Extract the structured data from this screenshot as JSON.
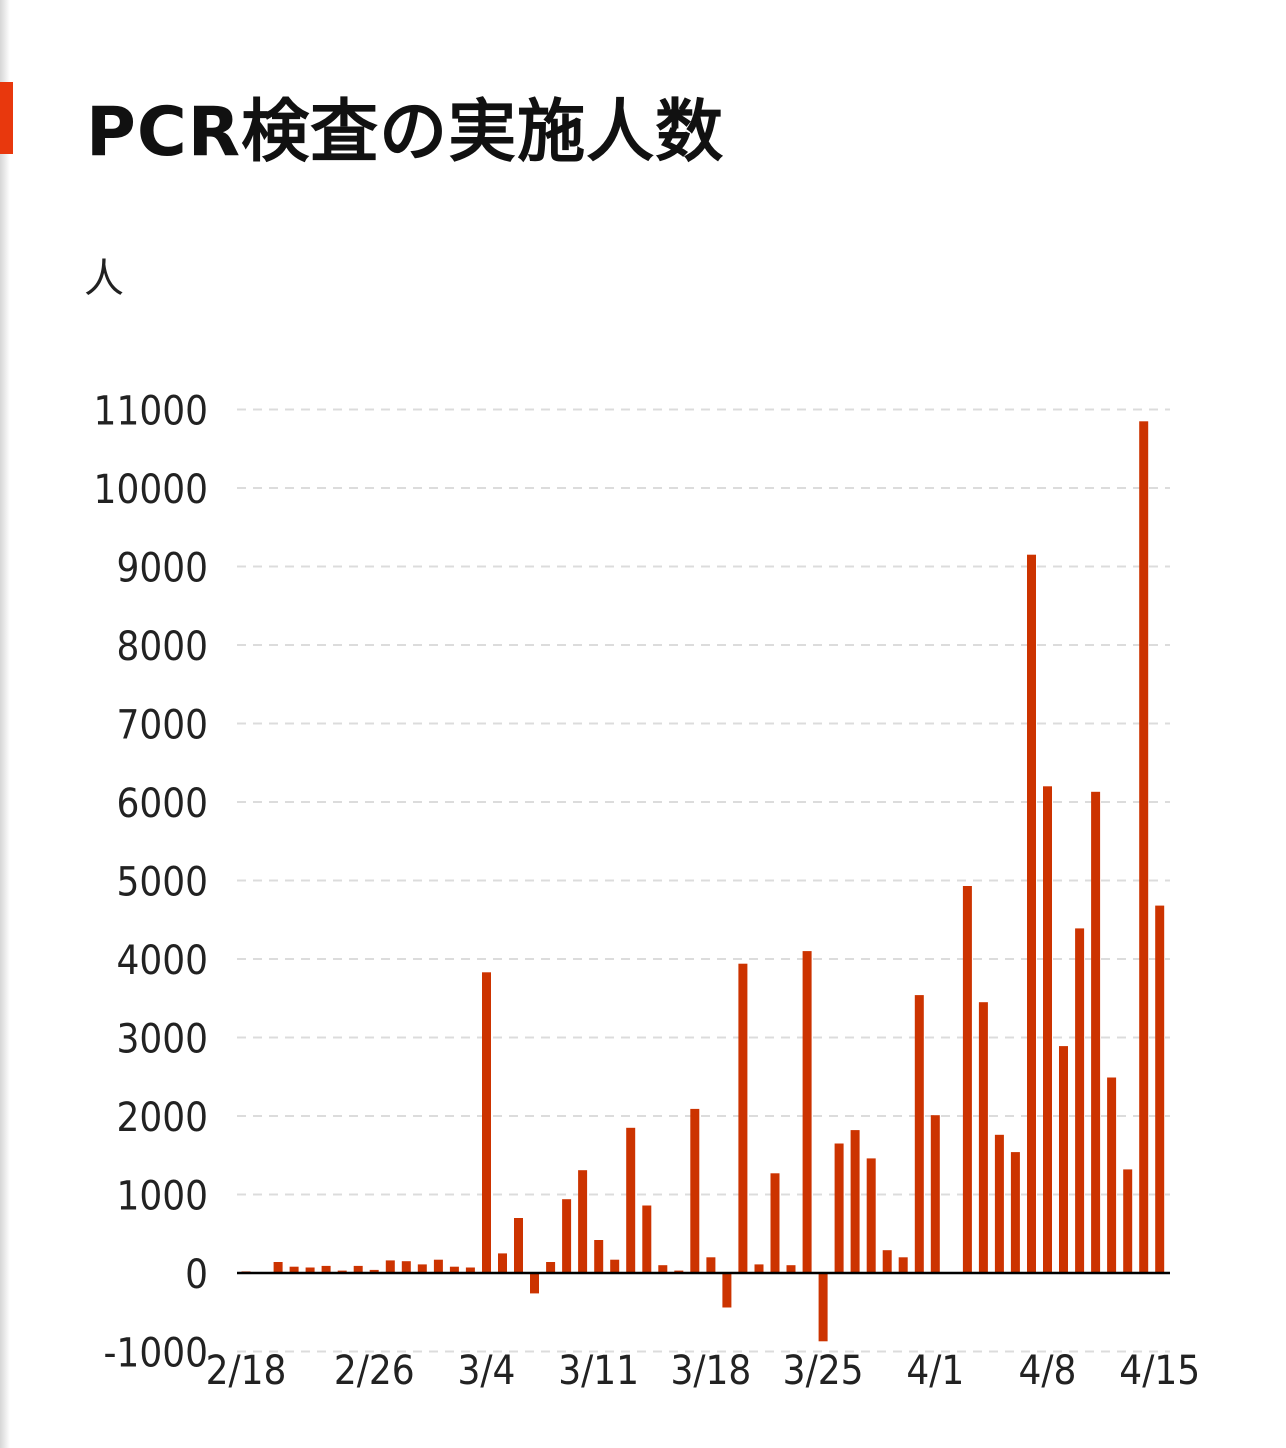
{
  "title": "PCR検査の実施人数",
  "unit_label": "人",
  "colors": {
    "bar": "#cc3300",
    "accent": "#e8380d",
    "grid": "#dcdcdc",
    "axis": "#000000"
  },
  "chart_data": {
    "type": "bar",
    "title": "PCR検査の実施人数",
    "ylabel": "人",
    "xlabel": "",
    "ylim": [
      -1000,
      11000
    ],
    "yticks": [
      11000,
      10000,
      9000,
      8000,
      7000,
      6000,
      5000,
      4000,
      3000,
      2000,
      1000,
      0,
      -1000
    ],
    "grid": "horizontal-dashed",
    "x_tick_labels": [
      "2/18",
      "2/26",
      "3/4",
      "3/11",
      "3/18",
      "3/25",
      "4/1",
      "4/8",
      "4/15"
    ],
    "categories": [
      "2/18",
      "2/19",
      "2/20",
      "2/21",
      "2/22",
      "2/23",
      "2/24",
      "2/25",
      "2/26",
      "2/27",
      "2/28",
      "2/29",
      "3/1",
      "3/2",
      "3/3",
      "3/4",
      "3/5",
      "3/6",
      "3/7",
      "3/8",
      "3/9",
      "3/10",
      "3/11",
      "3/12",
      "3/13",
      "3/14",
      "3/15",
      "3/16",
      "3/17",
      "3/18",
      "3/19",
      "3/20",
      "3/21",
      "3/22",
      "3/23",
      "3/24",
      "3/25",
      "3/26",
      "3/27",
      "3/28",
      "3/29",
      "3/30",
      "3/31",
      "4/1",
      "4/2",
      "4/3",
      "4/4",
      "4/5",
      "4/6",
      "4/7",
      "4/8",
      "4/9",
      "4/10",
      "4/11",
      "4/12",
      "4/13",
      "4/14",
      "4/15"
    ],
    "values": [
      20,
      0,
      140,
      80,
      70,
      90,
      30,
      90,
      40,
      160,
      150,
      110,
      170,
      80,
      70,
      3830,
      250,
      700,
      -260,
      140,
      940,
      1310,
      420,
      170,
      1850,
      860,
      100,
      30,
      2090,
      200,
      -440,
      3940,
      110,
      1270,
      100,
      4100,
      -870,
      1650,
      1820,
      1460,
      290,
      200,
      3540,
      2010,
      0,
      4930,
      3450,
      1760,
      1540,
      9150,
      6200,
      2890,
      4390,
      6130,
      2490,
      1320,
      10850,
      4680
    ]
  }
}
